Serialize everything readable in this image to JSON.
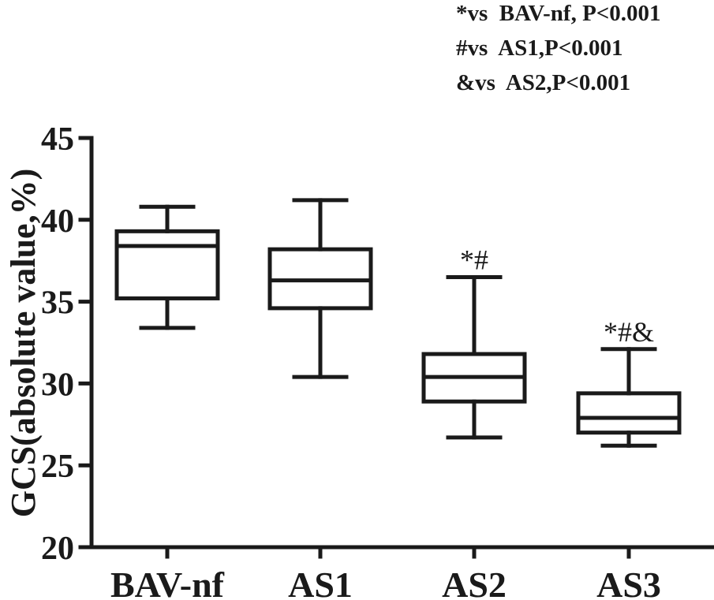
{
  "chart_data": {
    "type": "box",
    "ylabel": "GCS(absolute value,%)",
    "ylim": [
      20,
      45
    ],
    "yticks": [
      20,
      25,
      30,
      35,
      40,
      45
    ],
    "categories": [
      "BAV-nf",
      "AS1",
      "AS2",
      "AS3"
    ],
    "boxes": [
      {
        "category": "BAV-nf",
        "min": 33.4,
        "q1": 35.2,
        "median": 38.4,
        "q3": 39.3,
        "max": 40.8,
        "marker": ""
      },
      {
        "category": "AS1",
        "min": 30.4,
        "q1": 34.6,
        "median": 36.3,
        "q3": 38.2,
        "max": 41.2,
        "marker": ""
      },
      {
        "category": "AS2",
        "min": 26.7,
        "q1": 28.9,
        "median": 30.4,
        "q3": 31.8,
        "max": 36.5,
        "marker": "*#"
      },
      {
        "category": "AS3",
        "min": 26.2,
        "q1": 27.0,
        "median": 27.9,
        "q3": 29.4,
        "max": 32.1,
        "marker": "*#&"
      }
    ],
    "legend": [
      "*vs  BAV-nf, P<0.001",
      "#vs  AS1,P<0.001",
      "&vs  AS2,P<0.001"
    ],
    "grid": false
  }
}
